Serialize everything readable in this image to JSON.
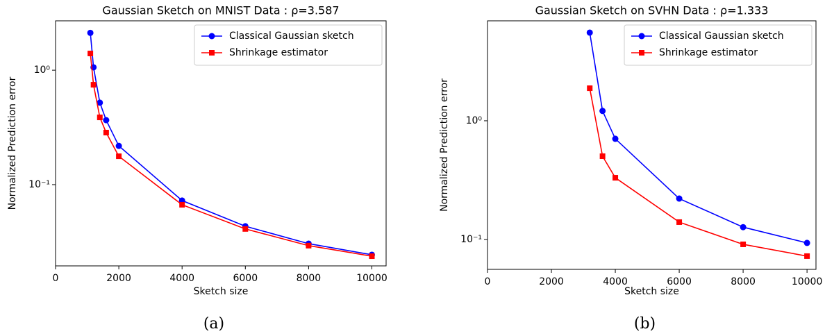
{
  "chart_data": [
    {
      "type": "line",
      "title": "Gaussian Sketch on MNIST Data : ρ=3.587",
      "xlabel": "Sketch size",
      "ylabel": "Normalized Prediction error",
      "caption": "(a)",
      "yscale": "log",
      "legend": "upper right",
      "xlim": [
        0,
        10450
      ],
      "xticks": [
        0,
        2000,
        4000,
        6000,
        8000,
        10000
      ],
      "ylim": [
        0.0195,
        2.7
      ],
      "yticks": [
        {
          "value": 0.1,
          "label": "10⁻¹"
        },
        {
          "value": 1,
          "label": "10⁰"
        }
      ],
      "x": [
        1100,
        1200,
        1400,
        1600,
        2000,
        4000,
        6000,
        8000,
        10000
      ],
      "series": [
        {
          "name": "Classical Gaussian sketch",
          "color": "#0000ff",
          "marker": "circle",
          "values": [
            2.12,
            1.06,
            0.52,
            0.366,
            0.218,
            0.0726,
            0.0433,
            0.0305,
            0.0244
          ]
        },
        {
          "name": "Shrinkage estimator",
          "color": "#ff0000",
          "marker": "square",
          "values": [
            1.4,
            0.746,
            0.387,
            0.285,
            0.177,
            0.0667,
            0.041,
            0.0293,
            0.0237
          ]
        }
      ]
    },
    {
      "type": "line",
      "title": "Gaussian Sketch on SVHN Data : ρ=1.333",
      "xlabel": "Sketch size",
      "ylabel": "Normalized Prediction error",
      "caption": "(b)",
      "yscale": "log",
      "legend": "upper right",
      "xlim": [
        0,
        10280
      ],
      "xticks": [
        0,
        2000,
        4000,
        6000,
        8000,
        10000
      ],
      "ylim": [
        0.056,
        6.95
      ],
      "yticks": [
        {
          "value": 0.1,
          "label": "10⁻¹"
        },
        {
          "value": 1,
          "label": "10⁰"
        }
      ],
      "x": [
        3200,
        3600,
        4000,
        6000,
        8000,
        10000
      ],
      "series": [
        {
          "name": "Classical Gaussian sketch",
          "color": "#0000ff",
          "marker": "circle",
          "values": [
            5.53,
            1.21,
            0.705,
            0.221,
            0.127,
            0.0935
          ]
        },
        {
          "name": "Shrinkage estimator",
          "color": "#ff0000",
          "marker": "square",
          "values": [
            1.88,
            0.503,
            0.331,
            0.14,
            0.091,
            0.0724
          ]
        }
      ]
    }
  ]
}
